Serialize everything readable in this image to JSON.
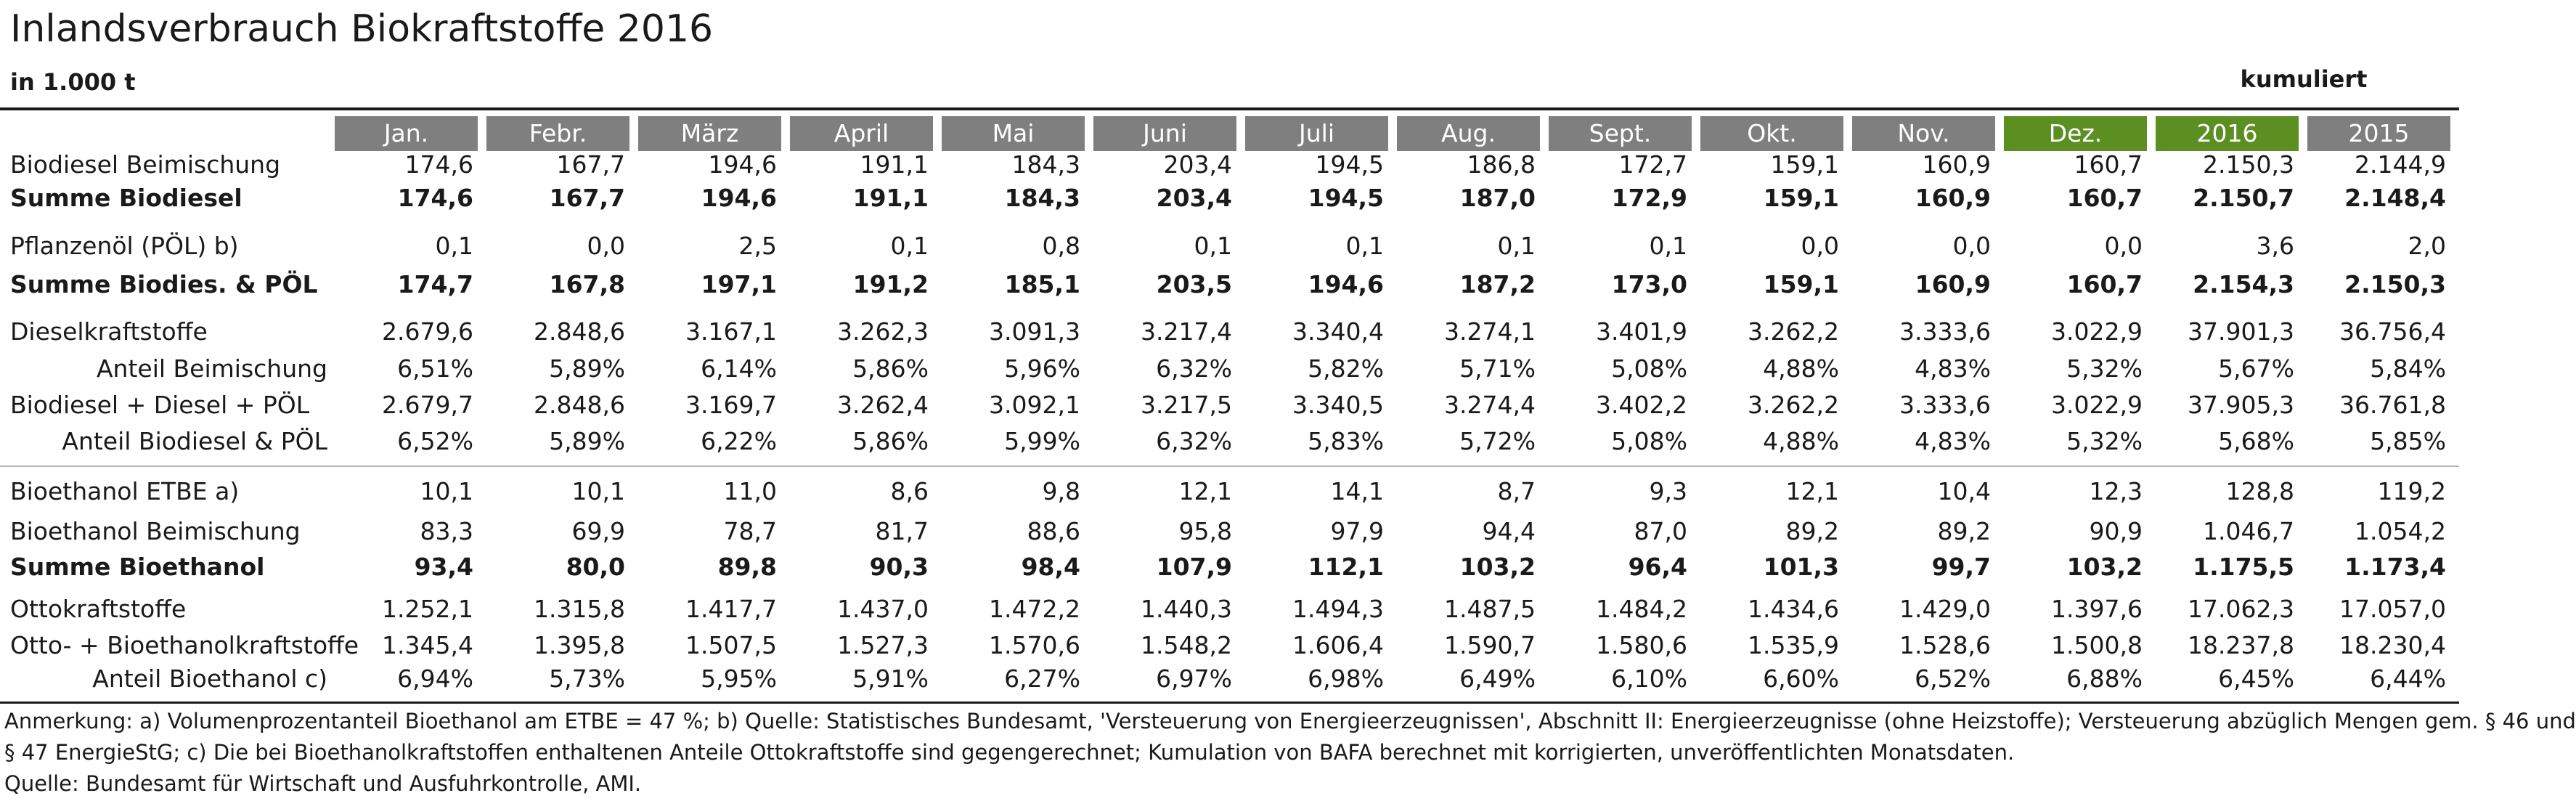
{
  "title": "Inlandsverbrauch Biokraftstoffe 2016",
  "unit": "in 1.000 t",
  "cumulative_label": "kumuliert",
  "colors": {
    "header_gray": "#7f7f7f",
    "header_green": "#5b8f22"
  },
  "columns": [
    "Jan.",
    "Febr.",
    "März",
    "April",
    "Mai",
    "Juni",
    "Juli",
    "Aug.",
    "Sept.",
    "Okt.",
    "Nov.",
    "Dez.",
    "2016",
    "2015"
  ],
  "highlighted_columns": [
    11,
    12
  ],
  "rows": [
    {
      "label": "Biodiesel Beimischung",
      "style": "normal",
      "values": [
        "174,6",
        "167,7",
        "194,6",
        "191,1",
        "184,3",
        "203,4",
        "194,5",
        "186,8",
        "172,7",
        "159,1",
        "160,9",
        "160,7",
        "2.150,3",
        "2.144,9"
      ]
    },
    {
      "label": "Summe Biodiesel",
      "style": "bold",
      "values": [
        "174,6",
        "167,7",
        "194,6",
        "191,1",
        "184,3",
        "203,4",
        "194,5",
        "187,0",
        "172,9",
        "159,1",
        "160,9",
        "160,7",
        "2.150,7",
        "2.148,4"
      ]
    },
    {
      "label": "Pflanzenöl (PÖL) b)",
      "style": "normal",
      "values": [
        "0,1",
        "0,0",
        "2,5",
        "0,1",
        "0,8",
        "0,1",
        "0,1",
        "0,1",
        "0,1",
        "0,0",
        "0,0",
        "0,0",
        "3,6",
        "2,0"
      ]
    },
    {
      "label": "Summe Biodies. & PÖL",
      "style": "bold",
      "values": [
        "174,7",
        "167,8",
        "197,1",
        "191,2",
        "185,1",
        "203,5",
        "194,6",
        "187,2",
        "173,0",
        "159,1",
        "160,9",
        "160,7",
        "2.154,3",
        "2.150,3"
      ]
    },
    {
      "label": "Dieselkraftstoffe",
      "style": "normal",
      "values": [
        "2.679,6",
        "2.848,6",
        "3.167,1",
        "3.262,3",
        "3.091,3",
        "3.217,4",
        "3.340,4",
        "3.274,1",
        "3.401,9",
        "3.262,2",
        "3.333,6",
        "3.022,9",
        "37.901,3",
        "36.756,4"
      ]
    },
    {
      "label": "Anteil Beimischung",
      "style": "indent",
      "values": [
        "6,51%",
        "5,89%",
        "6,14%",
        "5,86%",
        "5,96%",
        "6,32%",
        "5,82%",
        "5,71%",
        "5,08%",
        "4,88%",
        "4,83%",
        "5,32%",
        "5,67%",
        "5,84%"
      ]
    },
    {
      "label": "Biodiesel + Diesel + PÖL",
      "style": "normal",
      "values": [
        "2.679,7",
        "2.848,6",
        "3.169,7",
        "3.262,4",
        "3.092,1",
        "3.217,5",
        "3.340,5",
        "3.274,4",
        "3.402,2",
        "3.262,2",
        "3.333,6",
        "3.022,9",
        "37.905,3",
        "36.761,8"
      ]
    },
    {
      "label": "Anteil Biodiesel & PÖL",
      "style": "indent",
      "values": [
        "6,52%",
        "5,89%",
        "6,22%",
        "5,86%",
        "5,99%",
        "6,32%",
        "5,83%",
        "5,72%",
        "5,08%",
        "4,88%",
        "4,83%",
        "5,32%",
        "5,68%",
        "5,85%"
      ]
    },
    {
      "label": "Bioethanol ETBE a)",
      "style": "normal",
      "values": [
        "10,1",
        "10,1",
        "11,0",
        "8,6",
        "9,8",
        "12,1",
        "14,1",
        "8,7",
        "9,3",
        "12,1",
        "10,4",
        "12,3",
        "128,8",
        "119,2"
      ]
    },
    {
      "label": "Bioethanol Beimischung",
      "style": "normal",
      "values": [
        "83,3",
        "69,9",
        "78,7",
        "81,7",
        "88,6",
        "95,8",
        "97,9",
        "94,4",
        "87,0",
        "89,2",
        "89,2",
        "90,9",
        "1.046,7",
        "1.054,2"
      ]
    },
    {
      "label": "Summe Bioethanol",
      "style": "bold",
      "values": [
        "93,4",
        "80,0",
        "89,8",
        "90,3",
        "98,4",
        "107,9",
        "112,1",
        "103,2",
        "96,4",
        "101,3",
        "99,7",
        "103,2",
        "1.175,5",
        "1.173,4"
      ]
    },
    {
      "label": "Ottokraftstoffe",
      "style": "normal",
      "values": [
        "1.252,1",
        "1.315,8",
        "1.417,7",
        "1.437,0",
        "1.472,2",
        "1.440,3",
        "1.494,3",
        "1.487,5",
        "1.484,2",
        "1.434,6",
        "1.429,0",
        "1.397,6",
        "17.062,3",
        "17.057,0"
      ]
    },
    {
      "label": "Otto- + Bioethanolkraftstoffe",
      "style": "normal",
      "values": [
        "1.345,4",
        "1.395,8",
        "1.507,5",
        "1.527,3",
        "1.570,6",
        "1.548,2",
        "1.606,4",
        "1.590,7",
        "1.580,6",
        "1.535,9",
        "1.528,6",
        "1.500,8",
        "18.237,8",
        "18.230,4"
      ]
    },
    {
      "label": "Anteil Bioethanol c)",
      "style": "indent",
      "values": [
        "6,94%",
        "5,73%",
        "5,95%",
        "5,91%",
        "6,27%",
        "6,97%",
        "6,98%",
        "6,49%",
        "6,10%",
        "6,60%",
        "6,52%",
        "6,88%",
        "6,45%",
        "6,44%"
      ]
    }
  ],
  "notes": [
    "Anmerkung: a) Volumenprozentanteil Bioethanol am ETBE = 47 %; b) Quelle: Statistisches Bundesamt, 'Versteuerung von Energieerzeugnissen', Abschnitt II: Energieerzeugnisse (ohne Heizstoffe); Versteuerung abzüglich Mengen gem. § 46 und",
    "§ 47 EnergieStG; c) Die bei Bioethanolkraftstoffen enthaltenen Anteile Ottokraftstoffe sind gegengerechnet; Kumulation von BAFA berechnet mit korrigierten, unveröffentlichten Monatsdaten.",
    "Quelle: Bundesamt für Wirtschaft und Ausfuhrkontrolle, AMI."
  ]
}
